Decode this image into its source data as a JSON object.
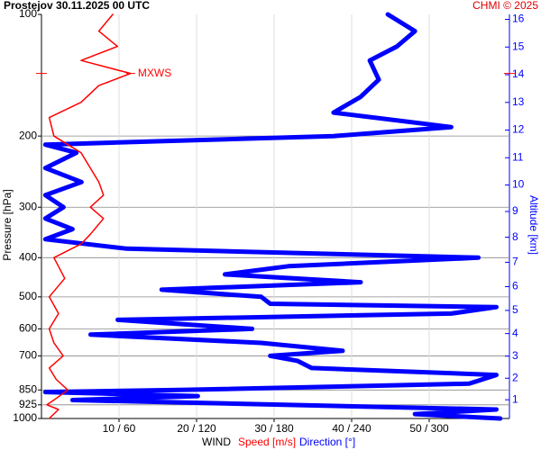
{
  "chart_data": {
    "type": "line",
    "title": "Prostejov    30.11.2025 00 UTC",
    "credit": "CHMI © 2025",
    "ylabel": "Pressure [hPa]",
    "y2label": "Altitude [km]",
    "xlabel": "WIND",
    "log_y": true,
    "grid": true,
    "ylim": [
      1000,
      100
    ],
    "yticks": [
      100,
      200,
      300,
      400,
      500,
      600,
      700,
      850,
      925,
      1000
    ],
    "gridlines_y": [
      200,
      300,
      400,
      500,
      600,
      700,
      850,
      925
    ],
    "y2ticks": [
      1,
      2,
      3,
      4,
      5,
      6,
      7,
      8,
      9,
      10,
      11,
      12,
      13,
      14,
      15,
      16
    ],
    "xlim": [
      0,
      60
    ],
    "x2lim": [
      0,
      360
    ],
    "xticks": [
      {
        "value": 10,
        "label": "10 / 60"
      },
      {
        "value": 20,
        "label": "20 / 120"
      },
      {
        "value": 30,
        "label": "30 / 180"
      },
      {
        "value": 40,
        "label": "40 / 240"
      },
      {
        "value": 50,
        "label": "50 / 300"
      }
    ],
    "series": [
      {
        "name": "Speed [m/s]",
        "color": "#ff0000",
        "y": [
          1000,
          950,
          925,
          900,
          850,
          800,
          750,
          700,
          650,
          600,
          550,
          500,
          450,
          400,
          370,
          350,
          320,
          300,
          280,
          260,
          240,
          220,
          200,
          180,
          165,
          150,
          140,
          130,
          120,
          110,
          100
        ],
        "values": [
          1.0,
          2.2,
          0.7,
          1.6,
          3.4,
          1.9,
          1.0,
          2.8,
          1.6,
          1.0,
          2.2,
          1.0,
          3.0,
          1.6,
          5.1,
          6.3,
          8.0,
          6.3,
          8.0,
          7.4,
          6.3,
          5.1,
          1.6,
          1.0,
          5.1,
          7.4,
          11.5,
          5.1,
          9.8,
          7.4,
          9.2
        ]
      },
      {
        "name": "Direction [°]",
        "color": "#0000ff",
        "axis": "x2",
        "y": [
          1000,
          975,
          950,
          900,
          880,
          860,
          850,
          820,
          780,
          750,
          720,
          700,
          680,
          650,
          620,
          600,
          570,
          550,
          530,
          520,
          500,
          480,
          460,
          440,
          420,
          400,
          380,
          360,
          340,
          320,
          300,
          280,
          260,
          240,
          220,
          210,
          200,
          190,
          175,
          160,
          145,
          130,
          120,
          110,
          100
        ],
        "values": [
          355,
          289,
          352,
          24,
          121,
          3,
          107,
          331,
          352,
          209,
          198,
          177,
          233,
          170,
          38,
          163,
          59,
          317,
          352,
          177,
          170,
          93,
          247,
          142,
          191,
          338,
          66,
          3,
          24,
          3,
          17,
          3,
          31,
          3,
          27,
          3,
          226,
          317,
          226,
          247,
          261,
          254,
          275,
          289,
          268
        ]
      }
    ],
    "annotations": [
      {
        "text": "MXWS",
        "y": 140,
        "x": 11.5
      }
    ]
  }
}
